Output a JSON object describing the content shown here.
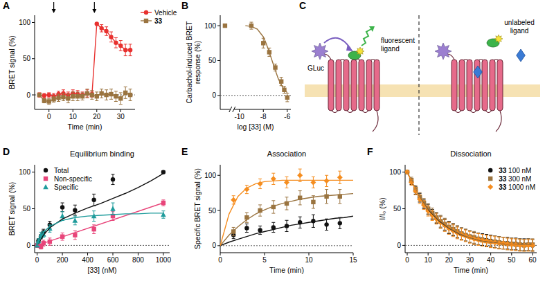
{
  "chart_data": [
    {
      "panel": "A",
      "type": "line",
      "x_label": "Time (min)",
      "y_label": "BRET signal (%)",
      "xlim": [
        -6,
        36
      ],
      "ylim": [
        -20,
        110
      ],
      "xticks": [
        0,
        10,
        20,
        30
      ],
      "yticks": [
        0,
        50,
        100
      ],
      "hline": 0,
      "arrows_x": [
        2,
        19
      ],
      "legend": "right",
      "series": [
        {
          "name": "Vehicle",
          "color": "#e8312f",
          "marker": "circle",
          "x": [
            -4,
            -2,
            0,
            2,
            4,
            6,
            8,
            10,
            12,
            14,
            16,
            18,
            20,
            22,
            24,
            26,
            28,
            30,
            32,
            34
          ],
          "values": [
            0,
            -1,
            0,
            -2,
            1,
            2,
            0,
            2,
            1,
            0,
            2,
            1,
            98,
            92,
            88,
            80,
            72,
            68,
            62,
            62
          ],
          "errors": [
            3,
            3,
            3,
            4,
            4,
            5,
            4,
            5,
            5,
            4,
            5,
            4,
            0,
            5,
            6,
            7,
            7,
            7,
            8,
            8
          ]
        },
        {
          "name": "33",
          "color": "#9a7440",
          "marker": "square",
          "x": [
            -4,
            -2,
            0,
            2,
            4,
            6,
            8,
            10,
            12,
            14,
            16,
            18,
            20,
            22,
            24,
            26,
            28,
            30,
            32,
            34
          ],
          "values": [
            0,
            -8,
            -9,
            -6,
            -4,
            -3,
            -5,
            -2,
            -2,
            -2,
            2,
            0,
            -2,
            2,
            0,
            1,
            -2,
            -5,
            3,
            0
          ],
          "errors": [
            2,
            3,
            4,
            4,
            5,
            5,
            6,
            6,
            6,
            5,
            6,
            6,
            6,
            6,
            7,
            7,
            7,
            8,
            8,
            8
          ]
        }
      ]
    },
    {
      "panel": "B",
      "type": "scatter",
      "x_label": "log [33] (M)",
      "y_label": "Carbachol-induced BRET response (%)",
      "xlim": [
        -11.6,
        -5.7
      ],
      "ylim": [
        -20,
        115
      ],
      "xticks": [
        -10,
        -8,
        -6
      ],
      "yticks": [
        0,
        50,
        100
      ],
      "hline": 0,
      "x_break": -10.6,
      "series": [
        {
          "color": "#9a7440",
          "marker": "square",
          "x": [
            -11.2,
            -9,
            -8,
            -7.5,
            -7,
            -6.5,
            -6.25,
            -6
          ],
          "values": [
            100,
            100,
            75,
            62,
            40,
            20,
            8,
            -3
          ],
          "errors": [
            0,
            5,
            7,
            6,
            5,
            6,
            5,
            6
          ]
        },
        {
          "type": "line",
          "color": "#9a7440",
          "marker": "none",
          "x": [
            -9.5,
            -9,
            -8.5,
            -8,
            -7.75,
            -7.5,
            -7.25,
            -7,
            -6.75,
            -6.5,
            -6.25,
            -6
          ],
          "values": [
            100,
            99,
            95,
            84,
            74,
            62,
            49,
            36,
            24,
            15,
            8,
            4
          ]
        }
      ]
    },
    {
      "panel": "D",
      "type": "scatter",
      "title": "Equilibrium binding",
      "x_label": "[33] (nM)",
      "y_label": "BRET signal (%)",
      "xlim": [
        -20,
        1050
      ],
      "ylim": [
        -10,
        110
      ],
      "xticks": [
        0,
        200,
        400,
        600,
        800,
        1000
      ],
      "yticks": [
        0,
        50,
        100
      ],
      "hline": 0,
      "legend": "upper left",
      "series": [
        {
          "name": "Total",
          "color": "#111111",
          "marker": "circle",
          "x": [
            0,
            10,
            30,
            50,
            100,
            200,
            300,
            450,
            600,
            1000
          ],
          "values": [
            0,
            6,
            12,
            18,
            28,
            52,
            48,
            62,
            90,
            100
          ],
          "errors": [
            2,
            3,
            3,
            4,
            5,
            6,
            7,
            8,
            7,
            2
          ]
        },
        {
          "name": "Non-specific",
          "color": "#e8457a",
          "marker": "square",
          "x": [
            0,
            10,
            30,
            50,
            100,
            200,
            300,
            450,
            600,
            1000
          ],
          "values": [
            0,
            0,
            -2,
            3,
            5,
            12,
            14,
            22,
            40,
            58
          ],
          "errors": [
            2,
            3,
            3,
            4,
            5,
            5,
            6,
            6,
            6,
            4
          ]
        },
        {
          "name": "Specific",
          "color": "#1f9c9c",
          "marker": "triangle",
          "x": [
            0,
            10,
            30,
            50,
            100,
            200,
            300,
            450,
            600,
            1000
          ],
          "values": [
            0,
            6,
            14,
            15,
            23,
            40,
            34,
            40,
            50,
            42
          ],
          "errors": [
            2,
            3,
            4,
            4,
            5,
            6,
            6,
            7,
            8,
            5
          ]
        },
        {
          "type": "line",
          "color": "#111111",
          "marker": "none",
          "x": [
            0,
            50,
            100,
            200,
            300,
            400,
            500,
            600,
            700,
            800,
            900,
            1000
          ],
          "values": [
            0,
            14,
            24,
            36,
            44,
            51,
            57,
            64,
            71,
            79,
            88,
            98
          ]
        },
        {
          "type": "line",
          "color": "#e8457a",
          "marker": "none",
          "x": [
            0,
            1000
          ],
          "values": [
            0,
            58
          ]
        },
        {
          "type": "line",
          "color": "#1f9c9c",
          "marker": "none",
          "x": [
            0,
            50,
            100,
            200,
            300,
            400,
            500,
            600,
            700,
            800,
            900,
            1000
          ],
          "values": [
            0,
            18,
            26,
            34,
            38,
            40,
            41,
            42,
            43,
            43,
            44,
            44
          ]
        }
      ]
    },
    {
      "panel": "E",
      "type": "scatter",
      "title": "Association",
      "x_label": "Time (min)",
      "y_label": "Specific BRET signal (%)",
      "xlim": [
        0,
        15
      ],
      "ylim": [
        -10,
        115
      ],
      "xticks": [
        0,
        5,
        10,
        15
      ],
      "yticks": [
        0,
        50,
        100
      ],
      "hline": 0,
      "series": [
        {
          "color": "#111111",
          "marker": "circle",
          "x": [
            1.5,
            3,
            4.5,
            6,
            7.5,
            9,
            10.5,
            12,
            13.5
          ],
          "values": [
            15,
            25,
            22,
            26,
            28,
            33,
            35,
            30,
            32
          ],
          "errors": [
            5,
            6,
            6,
            7,
            8,
            8,
            9,
            8,
            8
          ]
        },
        {
          "color": "#9a7440",
          "marker": "square",
          "x": [
            1.5,
            3,
            4.5,
            6,
            7.5,
            9,
            10.5,
            12,
            13.5
          ],
          "values": [
            20,
            40,
            50,
            55,
            60,
            68,
            62,
            70,
            70
          ],
          "errors": [
            6,
            7,
            8,
            9,
            9,
            10,
            9,
            10,
            10
          ]
        },
        {
          "color": "#f58d1f",
          "marker": "diamond",
          "x": [
            1.5,
            3,
            4.5,
            6,
            7.5,
            9,
            10.5,
            12,
            13.5
          ],
          "values": [
            65,
            80,
            88,
            95,
            90,
            100,
            90,
            92,
            97
          ],
          "errors": [
            6,
            6,
            7,
            8,
            8,
            9,
            8,
            8,
            9
          ]
        },
        {
          "type": "line",
          "color": "#111111",
          "marker": "none",
          "x": [
            0,
            1,
            2,
            3,
            4,
            5,
            6,
            7,
            8,
            9,
            10,
            11,
            12,
            13,
            14,
            15
          ],
          "values": [
            0,
            5,
            9,
            13,
            17,
            20,
            23,
            26,
            29,
            31,
            33,
            35,
            37,
            39,
            40,
            42
          ]
        },
        {
          "type": "line",
          "color": "#9a7440",
          "marker": "none",
          "x": [
            0,
            1,
            2,
            3,
            4,
            5,
            6,
            7,
            8,
            9,
            10,
            11,
            12,
            13,
            14,
            15
          ],
          "values": [
            0,
            15,
            27,
            37,
            45,
            51,
            56,
            60,
            63,
            66,
            68,
            70,
            71,
            72,
            73,
            74
          ]
        },
        {
          "type": "line",
          "color": "#f58d1f",
          "marker": "none",
          "x": [
            0,
            1,
            2,
            3,
            4,
            5,
            6,
            7,
            8,
            9,
            10,
            11,
            12,
            13,
            14,
            15
          ],
          "values": [
            0,
            45,
            70,
            82,
            88,
            91,
            92,
            93,
            93,
            93,
            93,
            93,
            93,
            93,
            93,
            93
          ]
        }
      ]
    },
    {
      "panel": "F",
      "type": "scatter",
      "title": "Dissociation",
      "x_label": "Time (min)",
      "y_label": "I/I₀ (%)",
      "xlim": [
        -1,
        62
      ],
      "ylim": [
        -10,
        110
      ],
      "xticks": [
        0,
        10,
        20,
        30,
        40,
        50,
        60
      ],
      "yticks": [
        0,
        50,
        100
      ],
      "hline": 0,
      "legend": "upper right",
      "series": [
        {
          "name": "33 100 nM",
          "color": "#111111",
          "marker": "circle",
          "x": [
            0,
            2,
            4,
            6,
            8,
            10,
            12,
            14,
            16,
            18,
            20,
            22,
            24,
            26,
            28,
            30,
            32,
            34,
            36,
            38,
            40,
            42,
            44,
            46,
            48,
            50,
            52,
            54,
            56,
            58,
            60
          ],
          "values": [
            100,
            87,
            75,
            65,
            56,
            49,
            42,
            37,
            32,
            28,
            24,
            21,
            18,
            16,
            14,
            12,
            10,
            9,
            8,
            7,
            6,
            5,
            4,
            3,
            3,
            2,
            2,
            1,
            1,
            1,
            0
          ],
          "errors": [
            0,
            4,
            5,
            6,
            6,
            7,
            7,
            7,
            8,
            8,
            8,
            8,
            8,
            8,
            8,
            8,
            8,
            8,
            8,
            8,
            8,
            8,
            8,
            8,
            8,
            8,
            8,
            8,
            8,
            8,
            8
          ]
        },
        {
          "name": "33 300 nM",
          "color": "#9a7440",
          "marker": "square",
          "x": [
            0,
            2,
            4,
            6,
            8,
            10,
            12,
            14,
            16,
            18,
            20,
            22,
            24,
            26,
            28,
            30,
            32,
            34,
            36,
            38,
            40,
            42,
            44,
            46,
            48,
            50,
            52,
            54,
            56,
            58,
            60
          ],
          "values": [
            100,
            89,
            77,
            66,
            58,
            50,
            44,
            38,
            33,
            29,
            25,
            22,
            19,
            16,
            14,
            12,
            11,
            9,
            7,
            6,
            5,
            5,
            4,
            3,
            2,
            2,
            1,
            1,
            0,
            1,
            1
          ],
          "errors": [
            0,
            4,
            5,
            6,
            6,
            7,
            7,
            7,
            8,
            8,
            8,
            8,
            8,
            8,
            8,
            8,
            8,
            8,
            8,
            8,
            8,
            8,
            8,
            8,
            8,
            8,
            8,
            8,
            8,
            8,
            8
          ]
        },
        {
          "name": "33 1000 nM",
          "color": "#f58d1f",
          "marker": "diamond",
          "x": [
            0,
            2,
            4,
            6,
            8,
            10,
            12,
            14,
            16,
            18,
            20,
            22,
            24,
            26,
            28,
            30,
            32,
            34,
            36,
            38,
            40,
            42,
            44,
            46,
            48,
            50,
            52,
            54,
            56,
            58,
            60
          ],
          "values": [
            100,
            86,
            74,
            63,
            55,
            47,
            41,
            36,
            31,
            27,
            23,
            20,
            17,
            15,
            13,
            11,
            9,
            8,
            7,
            6,
            5,
            4,
            3,
            3,
            2,
            1,
            1,
            0,
            0,
            0,
            0
          ],
          "errors": [
            0,
            4,
            5,
            6,
            6,
            7,
            7,
            7,
            8,
            8,
            8,
            8,
            8,
            8,
            8,
            8,
            8,
            8,
            8,
            8,
            8,
            8,
            8,
            8,
            8,
            8,
            8,
            8,
            8,
            8,
            8
          ]
        },
        {
          "type": "line",
          "color": "#111111",
          "marker": "none",
          "x": [
            0,
            5,
            10,
            15,
            20,
            25,
            30,
            35,
            40,
            45,
            50,
            55,
            60
          ],
          "values": [
            100,
            70,
            49,
            34,
            23,
            15,
            10,
            6,
            4,
            2,
            1,
            1,
            0
          ]
        },
        {
          "type": "line",
          "color": "#9a7440",
          "marker": "none",
          "x": [
            0,
            5,
            10,
            15,
            20,
            25,
            30,
            35,
            40,
            45,
            50,
            55,
            60
          ],
          "values": [
            100,
            71,
            50,
            35,
            24,
            16,
            10,
            6,
            4,
            2,
            1,
            1,
            0
          ]
        },
        {
          "type": "line",
          "color": "#f58d1f",
          "marker": "none",
          "x": [
            0,
            5,
            10,
            15,
            20,
            25,
            30,
            35,
            40,
            45,
            50,
            55,
            60
          ],
          "values": [
            100,
            69,
            47,
            32,
            22,
            14,
            9,
            5,
            3,
            2,
            1,
            0,
            0
          ]
        }
      ]
    }
  ],
  "diagram": {
    "panel": "C",
    "labels": {
      "gluc": "GLuc",
      "fluorescent_ligand": "fluorescent ligand",
      "unlabeled_ligand": "unlabeled ligand"
    }
  }
}
